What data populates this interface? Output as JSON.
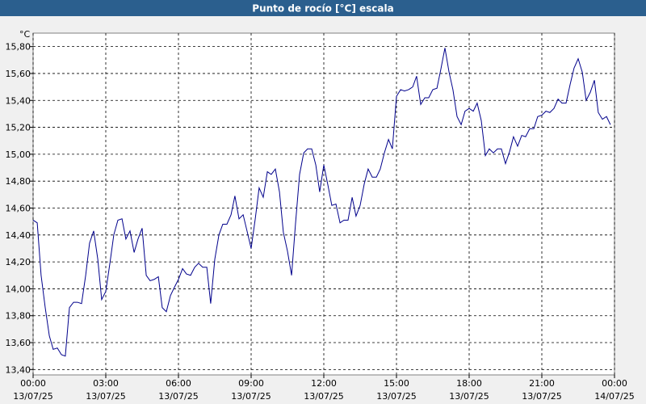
{
  "chart_data": {
    "type": "line",
    "title": "Punto de rocío [°C] escala",
    "y_unit": "°C",
    "xlim": [
      0,
      24
    ],
    "ylim": [
      13.36,
      15.9
    ],
    "grid": true,
    "color": "#00008b",
    "xticks": [
      {
        "value": 0,
        "label": "00:00",
        "date": "13/07/25"
      },
      {
        "value": 3,
        "label": "03:00",
        "date": "13/07/25"
      },
      {
        "value": 6,
        "label": "06:00",
        "date": "13/07/25"
      },
      {
        "value": 9,
        "label": "09:00",
        "date": "13/07/25"
      },
      {
        "value": 12,
        "label": "12:00",
        "date": "13/07/25"
      },
      {
        "value": 15,
        "label": "15:00",
        "date": "13/07/25"
      },
      {
        "value": 18,
        "label": "18:00",
        "date": "13/07/25"
      },
      {
        "value": 21,
        "label": "21:00",
        "date": "13/07/25"
      },
      {
        "value": 24,
        "label": "00:00",
        "date": "14/07/25"
      }
    ],
    "yticks": [
      {
        "value": 13.4,
        "label": "13,40"
      },
      {
        "value": 13.6,
        "label": "13,60"
      },
      {
        "value": 13.8,
        "label": "13,80"
      },
      {
        "value": 14.0,
        "label": "14,00"
      },
      {
        "value": 14.2,
        "label": "14,20"
      },
      {
        "value": 14.4,
        "label": "14,40"
      },
      {
        "value": 14.6,
        "label": "14,60"
      },
      {
        "value": 14.8,
        "label": "14,80"
      },
      {
        "value": 15.0,
        "label": "15,00"
      },
      {
        "value": 15.2,
        "label": "15,20"
      },
      {
        "value": 15.4,
        "label": "15,40"
      },
      {
        "value": 15.6,
        "label": "15,60"
      },
      {
        "value": 15.8,
        "label": "15,80"
      }
    ],
    "x": [
      0,
      0.17,
      0.33,
      0.5,
      0.67,
      0.83,
      1,
      1.17,
      1.33,
      1.5,
      1.67,
      1.83,
      2,
      2.17,
      2.33,
      2.5,
      2.67,
      2.83,
      3,
      3.17,
      3.33,
      3.5,
      3.67,
      3.83,
      4,
      4.17,
      4.33,
      4.5,
      4.67,
      4.83,
      5,
      5.17,
      5.33,
      5.5,
      5.67,
      5.83,
      6,
      6.17,
      6.33,
      6.5,
      6.67,
      6.83,
      7,
      7.17,
      7.33,
      7.5,
      7.67,
      7.83,
      8,
      8.17,
      8.33,
      8.5,
      8.67,
      8.83,
      9,
      9.17,
      9.33,
      9.5,
      9.67,
      9.83,
      10,
      10.17,
      10.33,
      10.5,
      10.67,
      10.83,
      11,
      11.17,
      11.33,
      11.5,
      11.67,
      11.83,
      12,
      12.17,
      12.33,
      12.5,
      12.67,
      12.83,
      13,
      13.17,
      13.33,
      13.5,
      13.67,
      13.83,
      14,
      14.17,
      14.33,
      14.5,
      14.67,
      14.83,
      15,
      15.17,
      15.33,
      15.5,
      15.67,
      15.83,
      16,
      16.17,
      16.33,
      16.5,
      16.67,
      16.83,
      17,
      17.17,
      17.33,
      17.5,
      17.67,
      17.83,
      18,
      18.17,
      18.33,
      18.5,
      18.67,
      18.83,
      19,
      19.17,
      19.33,
      19.5,
      19.67,
      19.83,
      20,
      20.17,
      20.33,
      20.5,
      20.67,
      20.83,
      21,
      21.17,
      21.33,
      21.5,
      21.67,
      21.83,
      22,
      22.17,
      22.33,
      22.5,
      22.67,
      22.83,
      23,
      23.17,
      23.33,
      23.5,
      23.67,
      23.83
    ],
    "values": [
      14.51,
      14.49,
      14.1,
      13.86,
      13.65,
      13.55,
      13.56,
      13.51,
      13.5,
      13.86,
      13.9,
      13.9,
      13.89,
      14.1,
      14.34,
      14.43,
      14.22,
      13.92,
      13.98,
      14.19,
      14.4,
      14.51,
      14.52,
      14.37,
      14.43,
      14.27,
      14.37,
      14.45,
      14.1,
      14.06,
      14.07,
      14.09,
      13.86,
      13.83,
      13.95,
      14.01,
      14.07,
      14.15,
      14.11,
      14.1,
      14.16,
      14.19,
      14.16,
      14.16,
      13.89,
      14.22,
      14.4,
      14.48,
      14.48,
      14.55,
      14.69,
      14.52,
      14.55,
      14.43,
      14.3,
      14.52,
      14.75,
      14.68,
      14.87,
      14.85,
      14.89,
      14.72,
      14.42,
      14.28,
      14.1,
      14.48,
      14.85,
      15.01,
      15.04,
      15.04,
      14.92,
      14.72,
      14.92,
      14.77,
      14.62,
      14.63,
      14.49,
      14.51,
      14.51,
      14.68,
      14.54,
      14.62,
      14.78,
      14.89,
      14.83,
      14.83,
      14.89,
      15.01,
      15.11,
      15.04,
      15.43,
      15.48,
      15.47,
      15.48,
      15.5,
      15.58,
      15.37,
      15.42,
      15.42,
      15.48,
      15.49,
      15.63,
      15.79,
      15.61,
      15.48,
      15.28,
      15.22,
      15.32,
      15.34,
      15.32,
      15.38,
      15.25,
      14.99,
      15.04,
      15.01,
      15.04,
      15.04,
      14.93,
      15.02,
      15.13,
      15.06,
      15.14,
      15.13,
      15.19,
      15.19,
      15.28,
      15.29,
      15.32,
      15.31,
      15.34,
      15.41,
      15.38,
      15.38,
      15.52,
      15.64,
      15.71,
      15.61,
      15.4,
      15.46,
      15.55,
      15.31,
      15.26,
      15.28,
      15.22
    ]
  }
}
